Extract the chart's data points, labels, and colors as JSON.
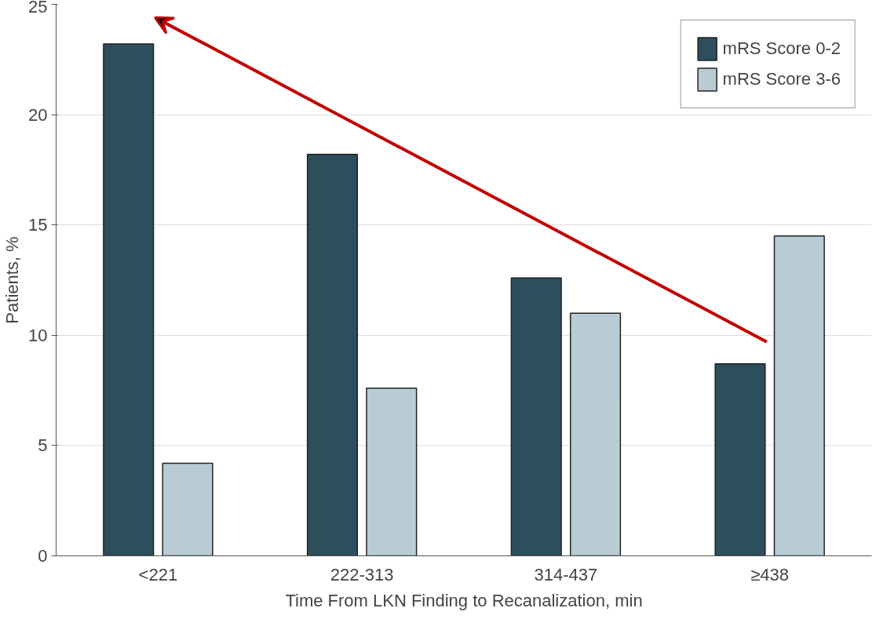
{
  "chart_data": {
    "type": "bar",
    "xlabel": "Time From LKN Finding to Recanalization, min",
    "ylabel": "Patients, %",
    "categories": [
      "<221",
      "222-313",
      "314-437",
      "≥438"
    ],
    "series": [
      {
        "name": "mRS Score 0-2",
        "color": "#2d4f5c",
        "values": [
          23.2,
          18.2,
          12.6,
          8.7
        ]
      },
      {
        "name": "mRS Score 3-6",
        "color": "#b9ccd5",
        "values": [
          4.2,
          7.6,
          11.0,
          14.5
        ]
      }
    ],
    "ylim": [
      0,
      25
    ],
    "yticks": [
      0,
      5,
      10,
      15,
      20,
      25
    ],
    "grid": "y",
    "legend": "top right"
  }
}
